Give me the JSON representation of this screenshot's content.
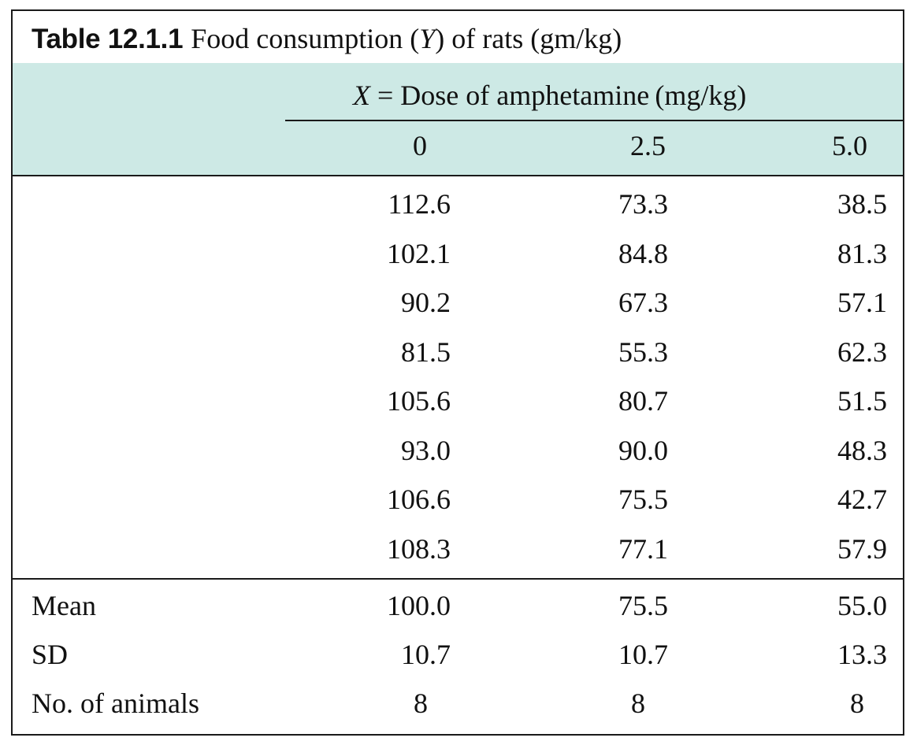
{
  "title": {
    "label": "Table 12.1.1",
    "text_before": "Food consumption (",
    "var": "Y",
    "text_after": ") of rats (gm/kg)"
  },
  "dose": {
    "var": "X",
    "text": " = Dose of amphetamine (mg/kg)"
  },
  "columns": [
    "0",
    "2.5",
    "5.0"
  ],
  "observations": [
    [
      "112.6",
      "73.3",
      "38.5"
    ],
    [
      "102.1",
      "84.8",
      "81.3"
    ],
    [
      "90.2",
      "67.3",
      "57.1"
    ],
    [
      "81.5",
      "55.3",
      "62.3"
    ],
    [
      "105.6",
      "80.7",
      "51.5"
    ],
    [
      "93.0",
      "90.0",
      "48.3"
    ],
    [
      "106.6",
      "75.5",
      "42.7"
    ],
    [
      "108.3",
      "77.1",
      "57.9"
    ]
  ],
  "summary": [
    {
      "label": "Mean",
      "values": [
        "100.0",
        "75.5",
        "55.0"
      ]
    },
    {
      "label": "SD",
      "values": [
        "10.7",
        "10.7",
        "13.3"
      ]
    },
    {
      "label": "No. of animals",
      "values": [
        "8",
        "8",
        "8"
      ]
    }
  ]
}
